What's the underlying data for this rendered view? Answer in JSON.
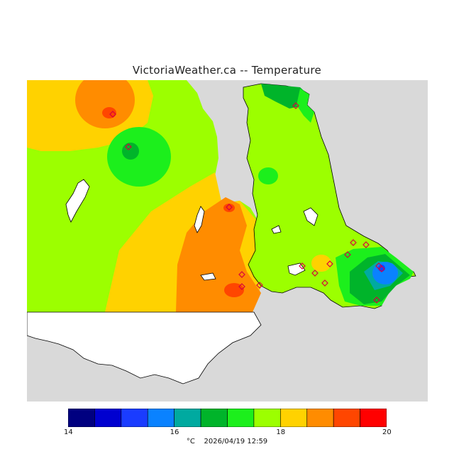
{
  "map": {
    "title": "VictoriaWeather.ca -- Temperature",
    "footer": {
      "unit": "°C",
      "timestamp": "2026/04/19 12:59"
    },
    "legend": {
      "min": 14,
      "max": 20,
      "tick_labels": [
        "14",
        "16",
        "18",
        "20"
      ],
      "bins": [
        {
          "from": 14.0,
          "to": 14.5,
          "color": "#000080"
        },
        {
          "from": 14.5,
          "to": 15.0,
          "color": "#0000d0"
        },
        {
          "from": 15.0,
          "to": 15.5,
          "color": "#1a3cff"
        },
        {
          "from": 15.5,
          "to": 16.0,
          "color": "#0a82ff"
        },
        {
          "from": 16.0,
          "to": 16.5,
          "color": "#00aaa0"
        },
        {
          "from": 16.5,
          "to": 17.0,
          "color": "#00b42a"
        },
        {
          "from": 17.0,
          "to": 17.5,
          "color": "#1cef1c"
        },
        {
          "from": 17.5,
          "to": 18.0,
          "color": "#9cff00"
        },
        {
          "from": 18.0,
          "to": 18.5,
          "color": "#ffd200"
        },
        {
          "from": 18.5,
          "to": 19.0,
          "color": "#ff8c00"
        },
        {
          "from": 19.0,
          "to": 19.5,
          "color": "#ff4600"
        },
        {
          "from": 19.5,
          "to": 20.0,
          "color": "#ff0000"
        }
      ]
    },
    "colors": {
      "land_background": "#9cff00",
      "water": "#d9d9d9",
      "no_data_land": "#ffffff",
      "station_marker": "#d8003c"
    }
  }
}
